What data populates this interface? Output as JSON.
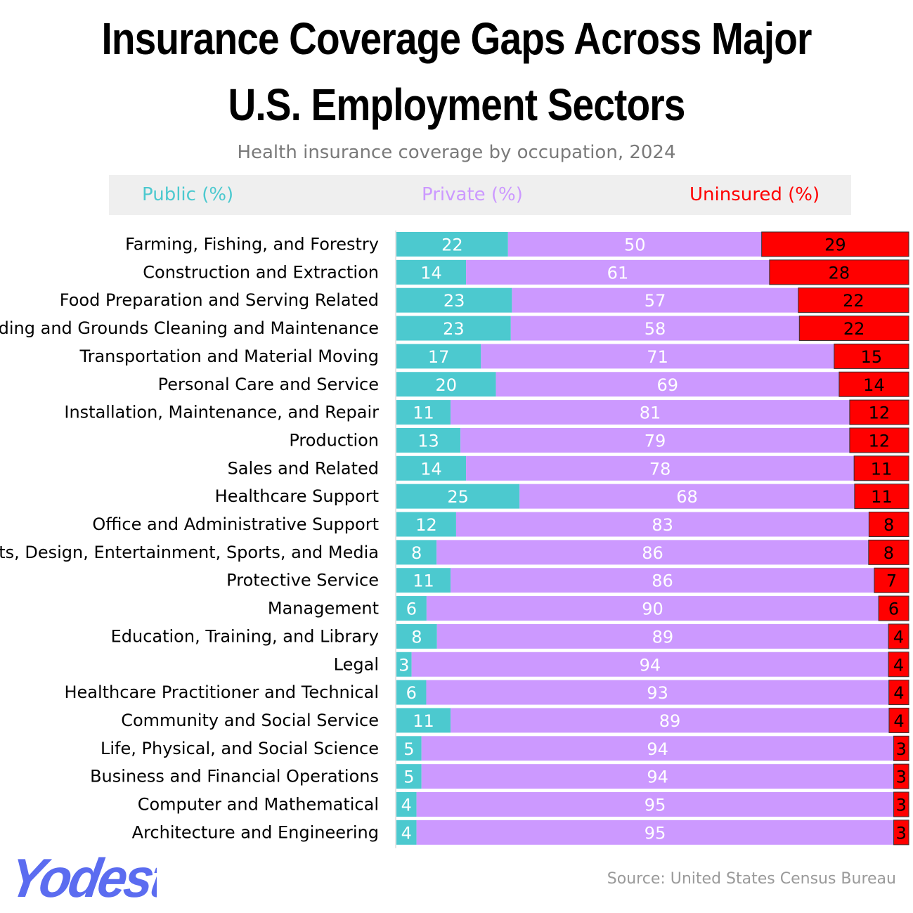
{
  "chart_data": {
    "type": "bar",
    "orientation": "horizontal",
    "stacked": true,
    "title": "Insurance Coverage Gaps Across Major U.S. Employment Sectors",
    "subtitle": "Health insurance coverage by occupation, 2024",
    "legend_position": "top",
    "source": "Source: United States Census Bureau",
    "categories": [
      "Farming, Fishing, and Forestry",
      "Construction and Extraction",
      "Food Preparation and Serving Related",
      "Building and Grounds Cleaning and Maintenance",
      "Transportation and Material Moving",
      "Personal Care and Service",
      "Installation, Maintenance, and Repair",
      "Production",
      "Sales and Related",
      "Healthcare Support",
      "Office and Administrative Support",
      "Arts, Design, Entertainment, Sports, and Media",
      "Protective Service",
      "Management",
      "Education, Training, and Library",
      "Legal",
      "Healthcare Practitioner and Technical",
      "Community and Social Service",
      "Life, Physical, and Social Science",
      "Business and Financial Operations",
      "Computer and Mathematical",
      "Architecture and Engineering"
    ],
    "series": [
      {
        "name": "Public (%)",
        "color": "#4cc9cf",
        "label_color": "#ffffff",
        "values": [
          22,
          14,
          23,
          23,
          17,
          20,
          11,
          13,
          14,
          25,
          12,
          8,
          11,
          6,
          8,
          3,
          6,
          11,
          5,
          5,
          4,
          4
        ]
      },
      {
        "name": "Private (%)",
        "color": "#cc99ff",
        "label_color": "#ffffff",
        "values": [
          50,
          61,
          57,
          58,
          71,
          69,
          81,
          79,
          78,
          68,
          83,
          86,
          86,
          90,
          89,
          94,
          93,
          89,
          94,
          94,
          95,
          95
        ]
      },
      {
        "name": "Uninsured (%)",
        "color": "#ff0000",
        "label_color": "#000000",
        "values": [
          29,
          28,
          22,
          22,
          15,
          14,
          12,
          12,
          11,
          11,
          8,
          8,
          7,
          6,
          4,
          4,
          4,
          4,
          3,
          3,
          3,
          3
        ]
      }
    ],
    "legend_colors": {
      "Public (%)": "#4cc9cf",
      "Private (%)": "#cc99ff",
      "Uninsured (%)": "#ff0000"
    },
    "grid": false
  },
  "branding": {
    "logo_text": "Yodest",
    "logo_color": "#5b6cf0"
  }
}
